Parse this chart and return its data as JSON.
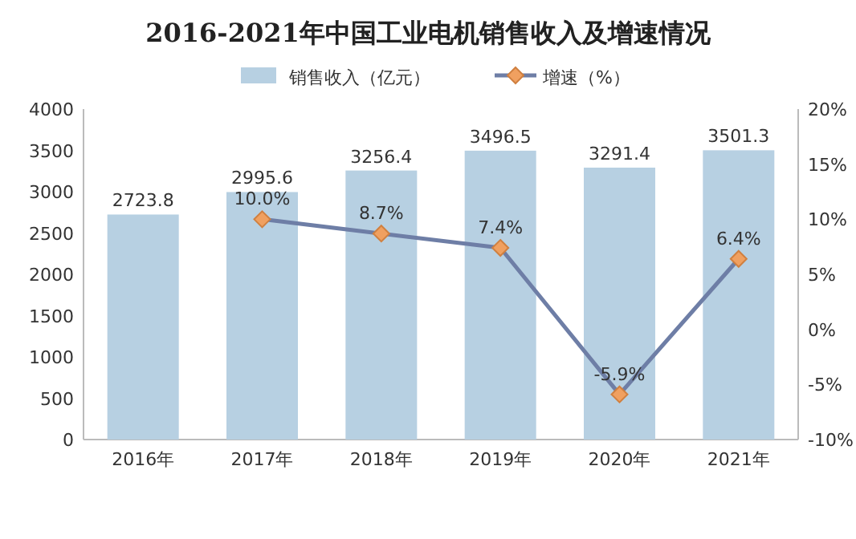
{
  "chart_data": {
    "type": "bar",
    "title": "2016-2021年中国工业电机销售收入及增速情况",
    "categories": [
      "2016年",
      "2017年",
      "2018年",
      "2019年",
      "2020年",
      "2021年"
    ],
    "series": [
      {
        "name": "销售收入（亿元）",
        "color": "#b7d0e2",
        "values": [
          2723.8,
          2995.6,
          3256.4,
          3496.5,
          3291.4,
          3501.3
        ],
        "value_labels": [
          "2723.8",
          "2995.6",
          "3256.4",
          "3496.5",
          "3291.4",
          "3501.3"
        ]
      },
      {
        "name": "增速（%）",
        "type": "line",
        "axis": "y2",
        "color": "#6e7ea6",
        "marker": "diamond",
        "values": [
          null,
          10.0,
          8.7,
          7.4,
          -5.9,
          6.4
        ],
        "value_labels": [
          null,
          "10.0%",
          "8.7%",
          "7.4%",
          "-5.9%",
          "6.4%"
        ]
      }
    ],
    "ylim": [
      0,
      4000
    ],
    "yticks": [
      0,
      500,
      1000,
      1500,
      2000,
      2500,
      3000,
      3500,
      4000
    ],
    "y2lim": [
      -10,
      20
    ],
    "y2ticks": [
      {
        "value": -10,
        "label": "-10%"
      },
      {
        "value": -5,
        "label": "-5%"
      },
      {
        "value": 0,
        "label": "0%"
      },
      {
        "value": 5,
        "label": "5%"
      },
      {
        "value": 10,
        "label": "10%"
      },
      {
        "value": 15,
        "label": "15%"
      },
      {
        "value": 20,
        "label": "20%"
      }
    ],
    "legend": "top",
    "grid": false
  }
}
